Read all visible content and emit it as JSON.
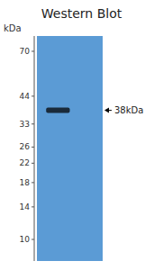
{
  "chart_data": {
    "type": "gel",
    "title": "Western Blot",
    "y_label": "kDa",
    "values": [
      38
    ],
    "value_labels": [
      "38kDa"
    ],
    "data_labels": true,
    "color": "#1a2a3a",
    "log": "y",
    "ylim": [
      8,
      82
    ],
    "yticks": [
      10,
      14,
      18,
      22,
      26,
      33,
      44,
      70
    ]
  }
}
